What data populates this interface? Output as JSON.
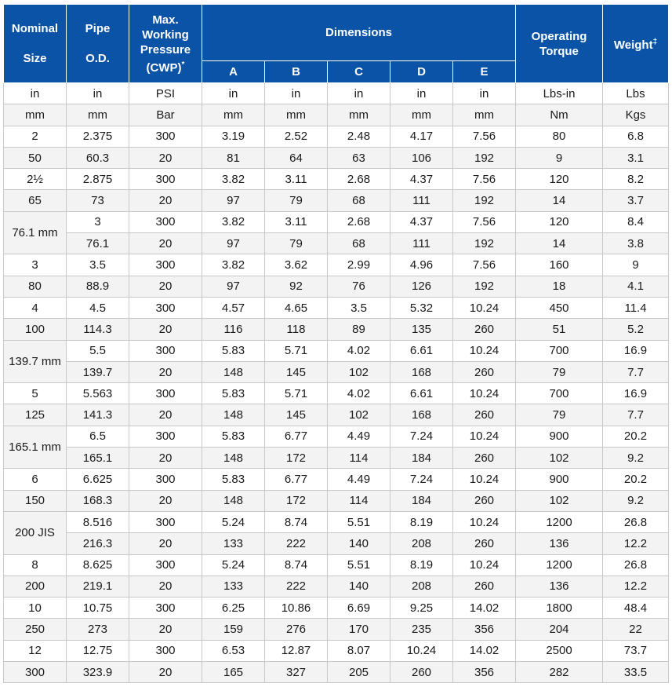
{
  "header": {
    "nominal_size": [
      "Nominal",
      "Size"
    ],
    "pipe_od": [
      "Pipe",
      "O.D."
    ],
    "max_pressure": [
      "Max.",
      "Working",
      "Pressure",
      "(CWP)"
    ],
    "max_pressure_sup": "*",
    "dimensions": "Dimensions",
    "dim_cols": [
      "A",
      "B",
      "C",
      "D",
      "E"
    ],
    "operating_torque": [
      "Operating",
      "Torque"
    ],
    "weight": "Weight",
    "weight_sup": "‡"
  },
  "unit_rows": [
    [
      "in",
      "in",
      "PSI",
      "in",
      "in",
      "in",
      "in",
      "in",
      "Lbs-in",
      "Lbs"
    ],
    [
      "mm",
      "mm",
      "Bar",
      "mm",
      "mm",
      "mm",
      "mm",
      "mm",
      "Nm",
      "Kgs"
    ]
  ],
  "rows": [
    {
      "size": "2",
      "cells": [
        "2.375",
        "300",
        "3.19",
        "2.52",
        "2.48",
        "4.17",
        "7.56",
        "80",
        "6.8"
      ]
    },
    {
      "size": "50",
      "cells": [
        "60.3",
        "20",
        "81",
        "64",
        "63",
        "106",
        "192",
        "9",
        "3.1"
      ]
    },
    {
      "size": "2½",
      "cells": [
        "2.875",
        "300",
        "3.82",
        "3.11",
        "2.68",
        "4.37",
        "7.56",
        "120",
        "8.2"
      ]
    },
    {
      "size": "65",
      "cells": [
        "73",
        "20",
        "97",
        "79",
        "68",
        "111",
        "192",
        "14",
        "3.7"
      ]
    },
    {
      "size": "76.1 mm",
      "span": 2,
      "cells": [
        "3",
        "300",
        "3.82",
        "3.11",
        "2.68",
        "4.37",
        "7.56",
        "120",
        "8.4"
      ]
    },
    {
      "cells": [
        "76.1",
        "20",
        "97",
        "79",
        "68",
        "111",
        "192",
        "14",
        "3.8"
      ]
    },
    {
      "size": "3",
      "cells": [
        "3.5",
        "300",
        "3.82",
        "3.62",
        "2.99",
        "4.96",
        "7.56",
        "160",
        "9"
      ]
    },
    {
      "size": "80",
      "cells": [
        "88.9",
        "20",
        "97",
        "92",
        "76",
        "126",
        "192",
        "18",
        "4.1"
      ]
    },
    {
      "size": "4",
      "cells": [
        "4.5",
        "300",
        "4.57",
        "4.65",
        "3.5",
        "5.32",
        "10.24",
        "450",
        "11.4"
      ]
    },
    {
      "size": "100",
      "cells": [
        "114.3",
        "20",
        "116",
        "118",
        "89",
        "135",
        "260",
        "51",
        "5.2"
      ]
    },
    {
      "size": "139.7 mm",
      "span": 2,
      "cells": [
        "5.5",
        "300",
        "5.83",
        "5.71",
        "4.02",
        "6.61",
        "10.24",
        "700",
        "16.9"
      ]
    },
    {
      "cells": [
        "139.7",
        "20",
        "148",
        "145",
        "102",
        "168",
        "260",
        "79",
        "7.7"
      ]
    },
    {
      "size": "5",
      "cells": [
        "5.563",
        "300",
        "5.83",
        "5.71",
        "4.02",
        "6.61",
        "10.24",
        "700",
        "16.9"
      ]
    },
    {
      "size": "125",
      "cells": [
        "141.3",
        "20",
        "148",
        "145",
        "102",
        "168",
        "260",
        "79",
        "7.7"
      ]
    },
    {
      "size": "165.1 mm",
      "span": 2,
      "cells": [
        "6.5",
        "300",
        "5.83",
        "6.77",
        "4.49",
        "7.24",
        "10.24",
        "900",
        "20.2"
      ]
    },
    {
      "cells": [
        "165.1",
        "20",
        "148",
        "172",
        "114",
        "184",
        "260",
        "102",
        "9.2"
      ]
    },
    {
      "size": "6",
      "cells": [
        "6.625",
        "300",
        "5.83",
        "6.77",
        "4.49",
        "7.24",
        "10.24",
        "900",
        "20.2"
      ]
    },
    {
      "size": "150",
      "cells": [
        "168.3",
        "20",
        "148",
        "172",
        "114",
        "184",
        "260",
        "102",
        "9.2"
      ]
    },
    {
      "size": "200 JIS",
      "span": 2,
      "cells": [
        "8.516",
        "300",
        "5.24",
        "8.74",
        "5.51",
        "8.19",
        "10.24",
        "1200",
        "26.8"
      ]
    },
    {
      "cells": [
        "216.3",
        "20",
        "133",
        "222",
        "140",
        "208",
        "260",
        "136",
        "12.2"
      ]
    },
    {
      "size": "8",
      "cells": [
        "8.625",
        "300",
        "5.24",
        "8.74",
        "5.51",
        "8.19",
        "10.24",
        "1200",
        "26.8"
      ]
    },
    {
      "size": "200",
      "cells": [
        "219.1",
        "20",
        "133",
        "222",
        "140",
        "208",
        "260",
        "136",
        "12.2"
      ]
    },
    {
      "size": "10",
      "cells": [
        "10.75",
        "300",
        "6.25",
        "10.86",
        "6.69",
        "9.25",
        "14.02",
        "1800",
        "48.4"
      ]
    },
    {
      "size": "250",
      "cells": [
        "273",
        "20",
        "159",
        "276",
        "170",
        "235",
        "356",
        "204",
        "22"
      ]
    },
    {
      "size": "12",
      "cells": [
        "12.75",
        "300",
        "6.53",
        "12.87",
        "8.07",
        "10.24",
        "14.02",
        "2500",
        "73.7"
      ]
    },
    {
      "size": "300",
      "cells": [
        "323.9",
        "20",
        "165",
        "327",
        "205",
        "260",
        "356",
        "282",
        "33.5"
      ]
    }
  ]
}
